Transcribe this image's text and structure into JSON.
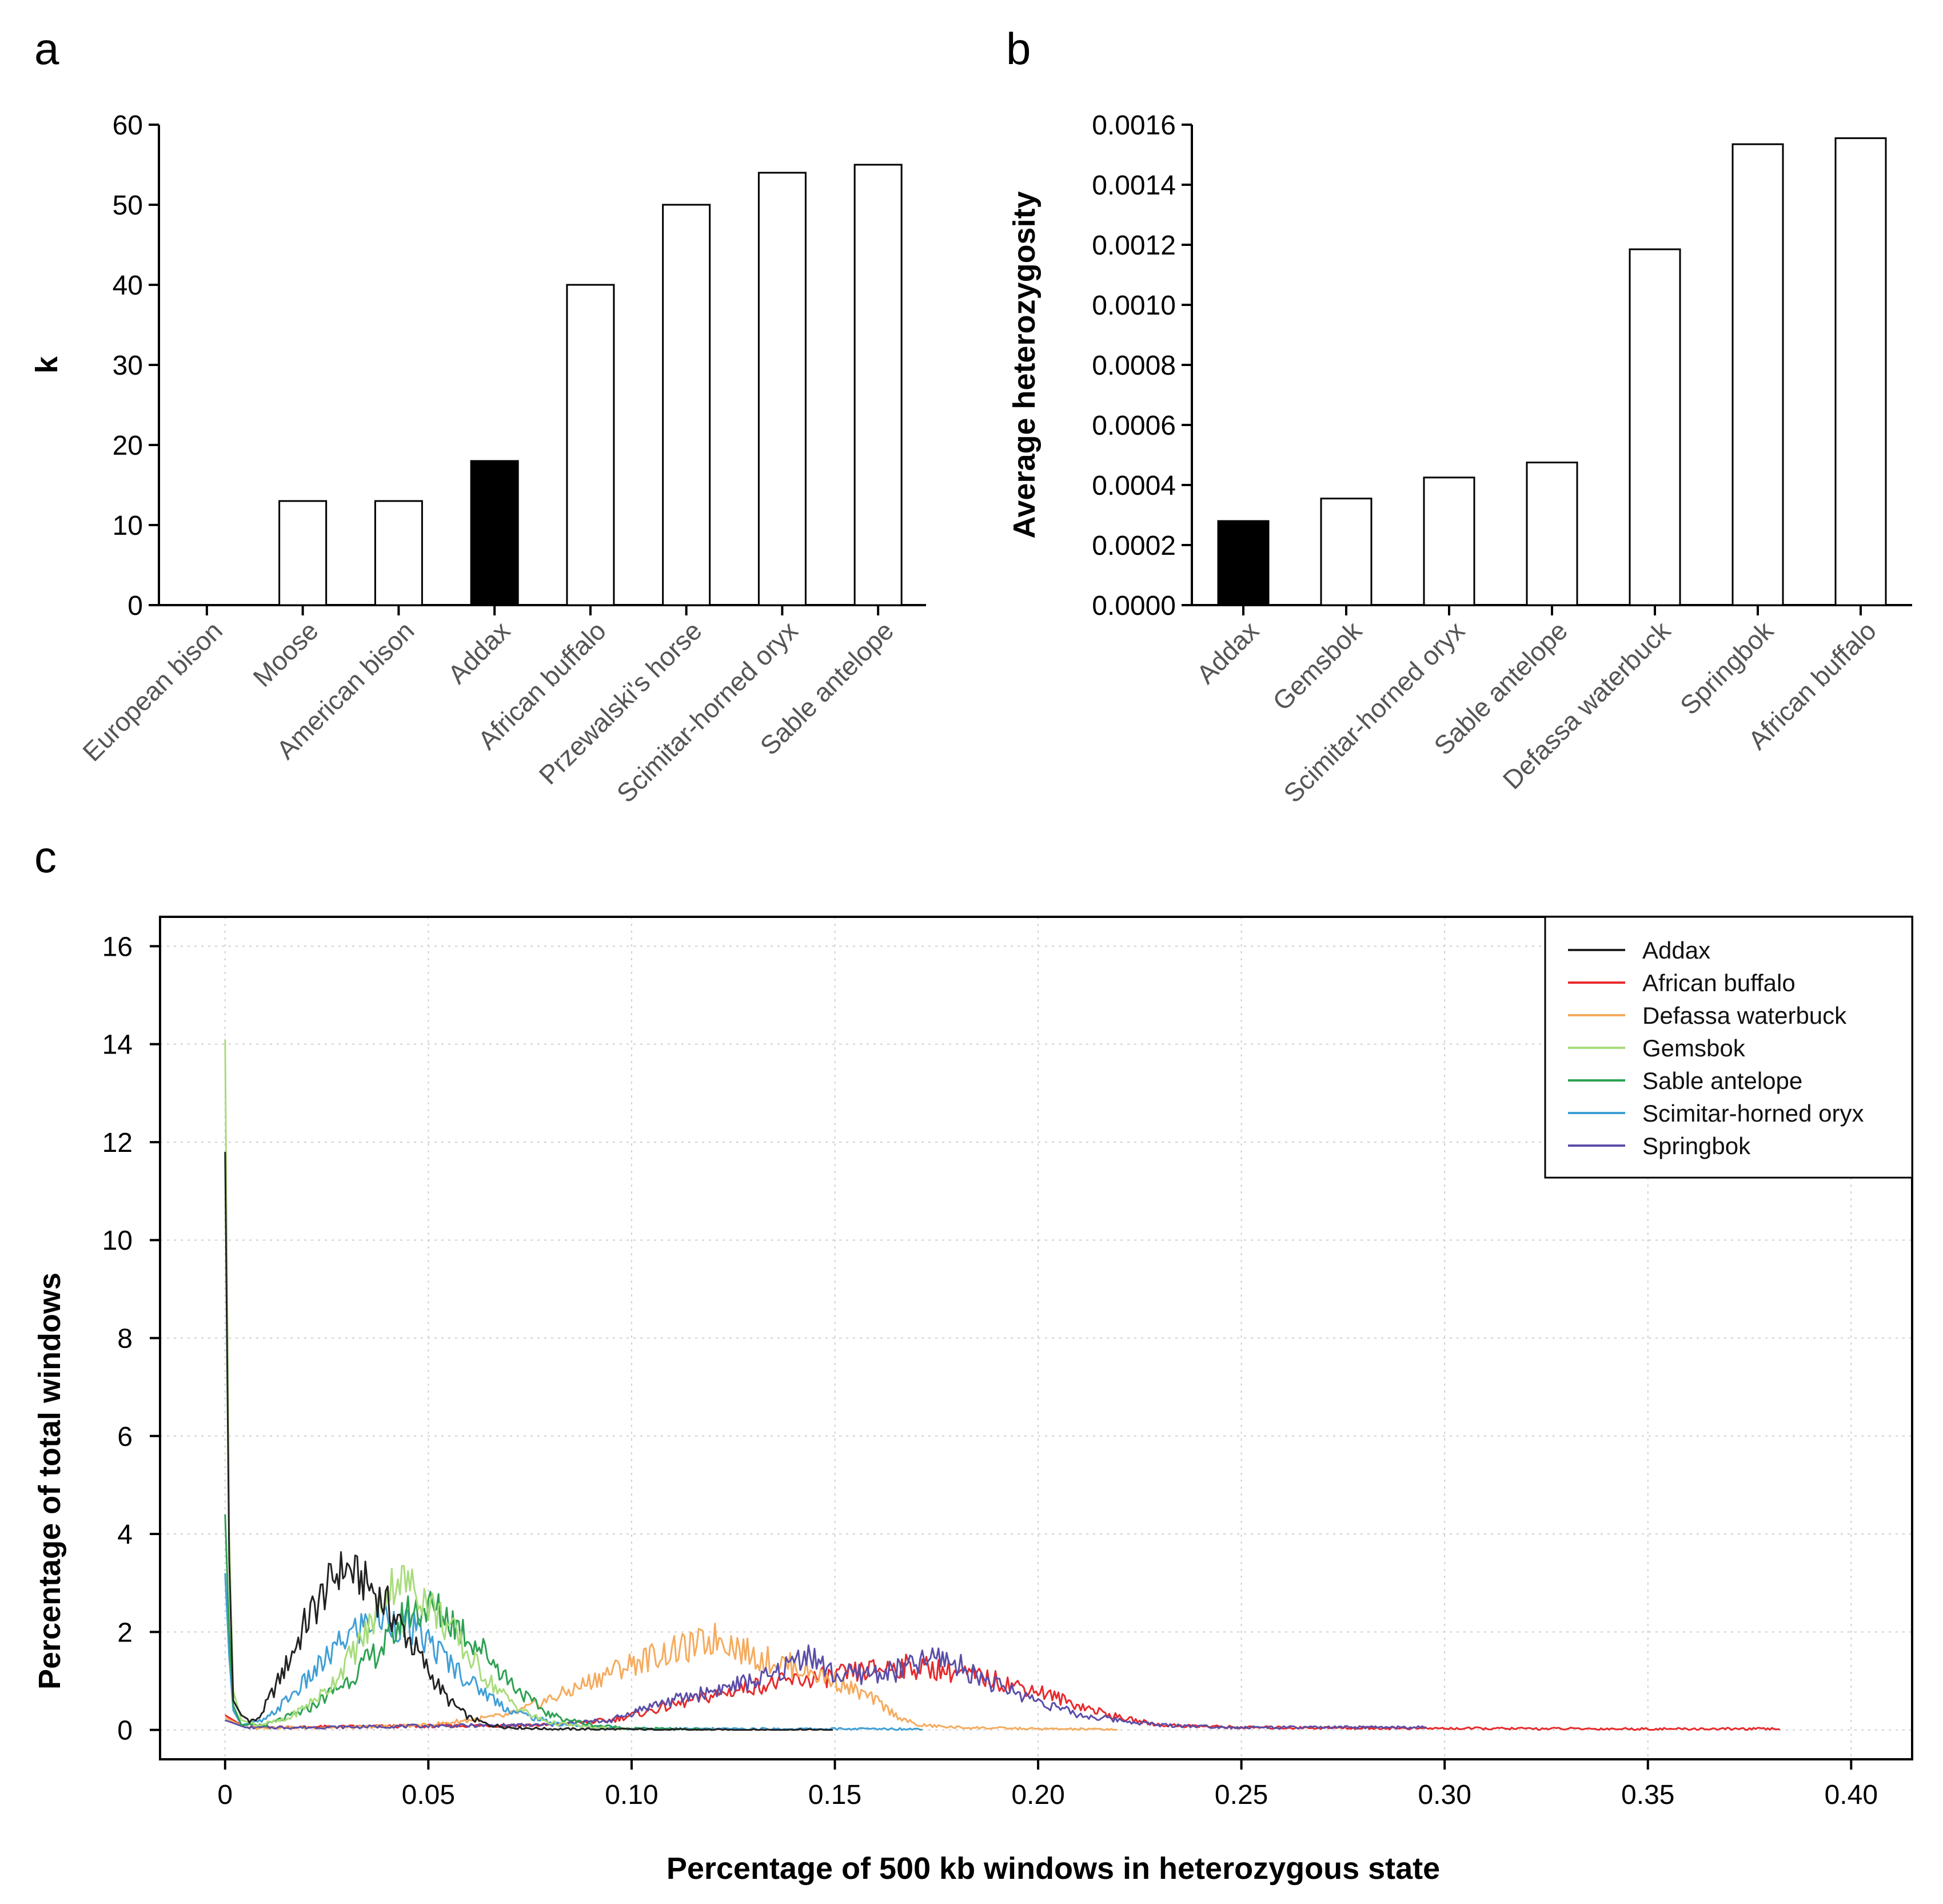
{
  "panels": {
    "a": "a",
    "b": "b",
    "c": "c"
  },
  "colors": {
    "highlight_bar": "#000000",
    "default_bar": "#ffffff",
    "Addax": "#222222",
    "African buffalo": "#e8292b",
    "Defassa waterbuck": "#f5ab5e",
    "Gemsbok": "#a8dc7c",
    "Sable antelope": "#2da153",
    "Scimitar-horned oryx": "#3f9fd6",
    "Springbok": "#5b4ea8"
  },
  "chart_data": [
    {
      "id": "a",
      "type": "bar",
      "title": "",
      "xlabel": "",
      "ylabel": "k",
      "ylim": [
        0,
        60
      ],
      "yticks": [
        "0",
        "10",
        "20",
        "30",
        "40",
        "50",
        "60"
      ],
      "categories": [
        "European bison",
        "Moose",
        "American bison",
        "Addax",
        "African buffalo",
        "Przewalski's horse",
        "Scimitar-horned oryx",
        "Sable antelope"
      ],
      "values": [
        0,
        13,
        13,
        18,
        40,
        50,
        54,
        55
      ],
      "highlight": "Addax"
    },
    {
      "id": "b",
      "type": "bar",
      "title": "",
      "xlabel": "",
      "ylabel": "Average heterozygosity",
      "ylim": [
        0,
        0.0016
      ],
      "yticks": [
        "0.0000",
        "0.0002",
        "0.0004",
        "0.0006",
        "0.0008",
        "0.0010",
        "0.0012",
        "0.0014",
        "0.0016"
      ],
      "categories": [
        "Addax",
        "Gemsbok",
        "Scimitar-horned oryx",
        "Sable antelope",
        "Defassa waterbuck",
        "Springbok",
        "African buffalo"
      ],
      "values": [
        0.00028,
        0.000355,
        0.000425,
        0.000475,
        0.001185,
        0.001535,
        0.001555
      ],
      "highlight": "Addax"
    },
    {
      "id": "c",
      "type": "line",
      "title": "",
      "xlabel": "Percentage of 500 kb windows in heterozygous state",
      "ylabel": "Percentage of total windows",
      "xlim": [
        -0.016,
        0.415
      ],
      "ylim": [
        -0.6,
        16.6
      ],
      "xticks": [
        0,
        0.05,
        0.1,
        0.15,
        0.2,
        0.25,
        0.3,
        0.35,
        0.4
      ],
      "xtick_labels": [
        "0",
        "0.05",
        "0.10",
        "0.15",
        "0.20",
        "0.25",
        "0.30",
        "0.35",
        "0.40"
      ],
      "yticks": [
        0,
        2,
        4,
        6,
        8,
        10,
        12,
        14,
        16
      ],
      "ytick_labels": [
        "0",
        "2",
        "4",
        "6",
        "8",
        "10",
        "12",
        "14",
        "16"
      ],
      "grid": true,
      "legend_position": "top-right",
      "series": [
        {
          "name": "Addax",
          "x": [
            0,
            0.001,
            0.002,
            0.004,
            0.006,
            0.008,
            0.01,
            0.015,
            0.02,
            0.025,
            0.028,
            0.03,
            0.033,
            0.036,
            0.04,
            0.045,
            0.05,
            0.055,
            0.06,
            0.065,
            0.07,
            0.08,
            0.1,
            0.12,
            0.15
          ],
          "y": [
            11.8,
            3.5,
            0.6,
            0.3,
            0.2,
            0.2,
            0.5,
            1.3,
            2.2,
            2.9,
            3.25,
            3.3,
            3.1,
            2.9,
            2.5,
            1.9,
            1.2,
            0.6,
            0.25,
            0.1,
            0.05,
            0.02,
            0.01,
            0.0,
            0.0
          ]
        },
        {
          "name": "African buffalo",
          "x": [
            0,
            0.005,
            0.02,
            0.05,
            0.08,
            0.095,
            0.11,
            0.13,
            0.15,
            0.165,
            0.175,
            0.19,
            0.2,
            0.21,
            0.22,
            0.23,
            0.25,
            0.3,
            0.35,
            0.383
          ],
          "y": [
            0.3,
            0.05,
            0.06,
            0.08,
            0.1,
            0.2,
            0.5,
            0.9,
            1.1,
            1.3,
            1.25,
            1.0,
            0.8,
            0.5,
            0.25,
            0.1,
            0.05,
            0.03,
            0.02,
            0.02
          ]
        },
        {
          "name": "Defassa waterbuck",
          "x": [
            0,
            0.005,
            0.03,
            0.05,
            0.07,
            0.085,
            0.095,
            0.105,
            0.115,
            0.122,
            0.13,
            0.14,
            0.15,
            0.16,
            0.165,
            0.17,
            0.18,
            0.2,
            0.22
          ],
          "y": [
            0.25,
            0.05,
            0.05,
            0.1,
            0.3,
            0.8,
            1.2,
            1.5,
            1.7,
            1.9,
            1.5,
            1.3,
            1.0,
            0.6,
            0.3,
            0.1,
            0.05,
            0.02,
            0.01
          ]
        },
        {
          "name": "Gemsbok",
          "x": [
            0,
            0.001,
            0.002,
            0.004,
            0.008,
            0.015,
            0.025,
            0.035,
            0.04,
            0.043,
            0.048,
            0.055,
            0.06,
            0.065,
            0.07,
            0.075,
            0.08,
            0.09,
            0.1
          ],
          "y": [
            14.1,
            4.0,
            0.8,
            0.2,
            0.1,
            0.2,
            0.8,
            2.0,
            2.9,
            3.1,
            2.8,
            2.1,
            1.5,
            1.0,
            0.6,
            0.3,
            0.15,
            0.05,
            0.01
          ]
        },
        {
          "name": "Sable antelope",
          "x": [
            0,
            0.001,
            0.002,
            0.004,
            0.01,
            0.02,
            0.03,
            0.04,
            0.045,
            0.05,
            0.055,
            0.06,
            0.065,
            0.07,
            0.075,
            0.08,
            0.09,
            0.1,
            0.12
          ],
          "y": [
            4.4,
            2.0,
            0.5,
            0.1,
            0.1,
            0.4,
            1.0,
            1.8,
            2.4,
            2.5,
            2.3,
            1.9,
            1.5,
            1.0,
            0.6,
            0.3,
            0.1,
            0.03,
            0.01
          ]
        },
        {
          "name": "Scimitar-horned oryx",
          "x": [
            0,
            0.001,
            0.002,
            0.004,
            0.01,
            0.02,
            0.03,
            0.035,
            0.04,
            0.045,
            0.05,
            0.055,
            0.06,
            0.065,
            0.07,
            0.08,
            0.09,
            0.1,
            0.12,
            0.15,
            0.172
          ],
          "y": [
            3.2,
            1.5,
            0.4,
            0.1,
            0.2,
            1.0,
            1.9,
            2.2,
            2.3,
            2.1,
            1.8,
            1.4,
            1.0,
            0.7,
            0.4,
            0.15,
            0.06,
            0.03,
            0.02,
            0.02,
            0.02
          ]
        },
        {
          "name": "Springbok",
          "x": [
            0,
            0.005,
            0.02,
            0.05,
            0.08,
            0.095,
            0.105,
            0.12,
            0.135,
            0.143,
            0.15,
            0.165,
            0.176,
            0.19,
            0.2,
            0.21,
            0.22,
            0.23,
            0.25,
            0.296
          ],
          "y": [
            0.2,
            0.05,
            0.05,
            0.08,
            0.1,
            0.2,
            0.5,
            0.8,
            1.1,
            1.6,
            1.1,
            1.2,
            1.5,
            0.9,
            0.6,
            0.3,
            0.2,
            0.1,
            0.05,
            0.05
          ]
        }
      ]
    }
  ]
}
